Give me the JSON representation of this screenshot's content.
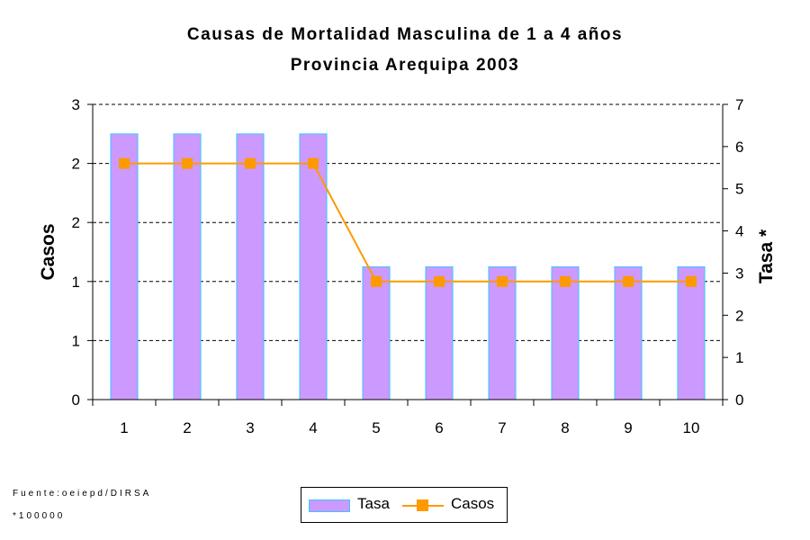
{
  "chart_data": {
    "type": "bar",
    "title": "Causas de Mortalidad Masculina de 1 a 4 años",
    "subtitle": "Provincia Arequipa 2003",
    "categories": [
      "1",
      "2",
      "3",
      "4",
      "5",
      "6",
      "7",
      "8",
      "9",
      "10"
    ],
    "series": [
      {
        "name": "Tasa",
        "type": "bar",
        "axis": "right",
        "color": "#cc99ff",
        "edge_color": "#33ccff",
        "values": [
          6.3,
          6.3,
          6.3,
          6.3,
          3.15,
          3.15,
          3.15,
          3.15,
          3.15,
          3.15
        ]
      },
      {
        "name": "Casos",
        "type": "line",
        "axis": "left",
        "color": "#ff9900",
        "values": [
          2,
          2,
          2,
          2,
          1,
          1,
          1,
          1,
          1,
          1
        ]
      }
    ],
    "ylabel": "Casos",
    "ylabel_right": "Tasa *",
    "ylim": [
      0,
      2.5
    ],
    "ylim_right": [
      0,
      7
    ],
    "yticks_left": [
      "0",
      "1",
      "1",
      "2",
      "2",
      "3"
    ],
    "yticks_right": [
      "0",
      "1",
      "2",
      "3",
      "4",
      "5",
      "6",
      "7"
    ],
    "grid": true,
    "legend": "bottom-center"
  },
  "footnotes": {
    "source": "Fuente:oeiepd/DIRSA",
    "note": "*100000"
  }
}
